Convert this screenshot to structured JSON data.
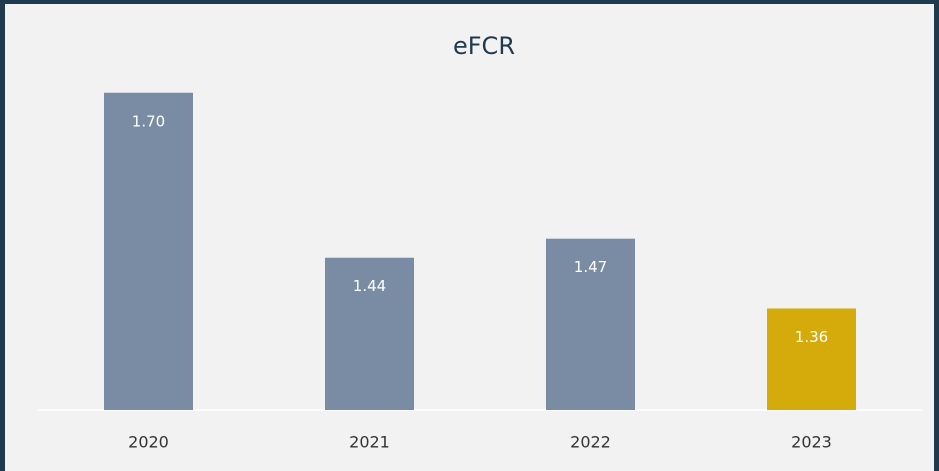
{
  "chart_data": {
    "type": "bar",
    "title": "eFCR",
    "categories": [
      "2020",
      "2021",
      "2022",
      "2023"
    ],
    "values": [
      1.7,
      1.44,
      1.47,
      1.36
    ],
    "value_labels": [
      "1.70",
      "1.44",
      "1.47",
      "1.36"
    ],
    "colors": [
      "#7a8ca4",
      "#7a8ca4",
      "#7a8ca4",
      "#d4ab0a"
    ],
    "ylim": [
      1.2,
      1.8
    ]
  }
}
